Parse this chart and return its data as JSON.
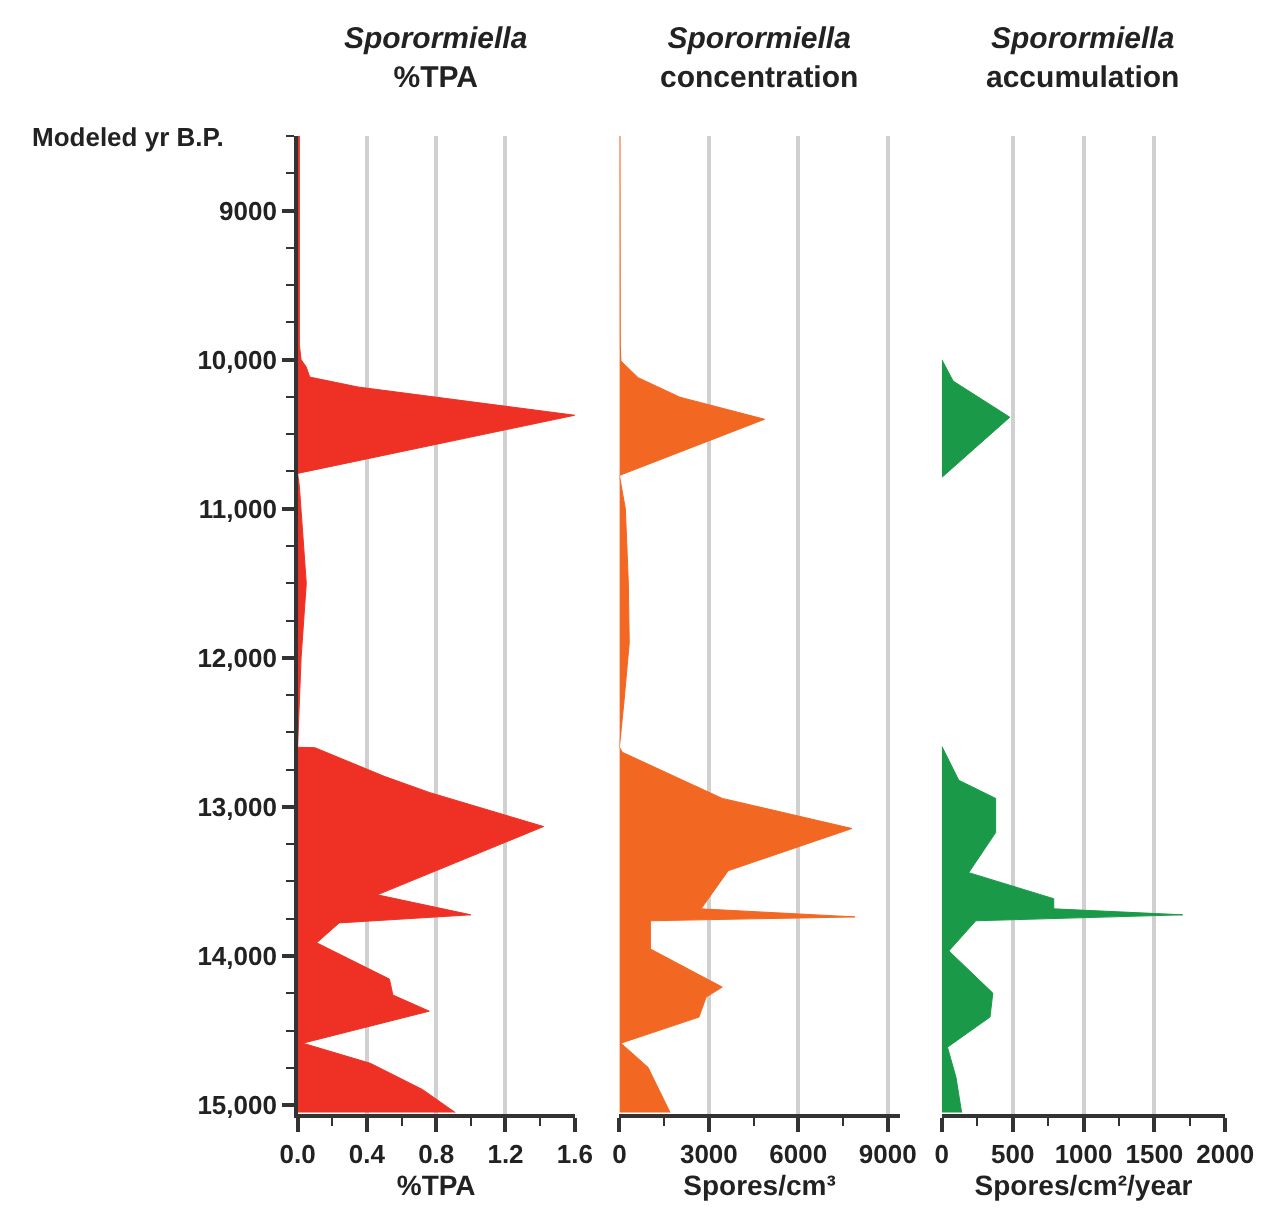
{
  "chart_data": [
    {
      "type": "area",
      "orientation": "horizontal",
      "title": "Sporormiella\n%TPA",
      "xlabel": "%TPA",
      "ylabel": "Modeled yr B.P.",
      "x": [
        8500,
        9000,
        9900,
        10000,
        10050,
        10117,
        10184,
        10373,
        10763,
        10850,
        11500,
        12000,
        12600,
        12603,
        12795,
        12903,
        13132,
        13590,
        13724,
        13778,
        13912,
        14155,
        14262,
        14370,
        14585,
        14720,
        14895,
        15050
      ],
      "series": [
        {
          "color": "#ee3124",
          "values": [
            0.01,
            0.01,
            0.01,
            0.02,
            0.05,
            0.07,
            0.35,
            1.6,
            0,
            0.01,
            0.05,
            0.02,
            0,
            0.1,
            0.5,
            0.76,
            1.42,
            0.46,
            1.0,
            0.24,
            0.11,
            0.53,
            0.55,
            0.76,
            0.03,
            0.42,
            0.72,
            0.91
          ]
        }
      ],
      "xlim": [
        0,
        1.6
      ],
      "xticks": [
        {
          "value": 0,
          "label": "0.0"
        },
        {
          "value": 0.2,
          "label": null
        },
        {
          "value": 0.4,
          "label": "0.4"
        },
        {
          "value": 0.6,
          "label": null
        },
        {
          "value": 0.8,
          "label": "0.8"
        },
        {
          "value": 1.0,
          "label": null
        },
        {
          "value": 1.2,
          "label": "1.2"
        },
        {
          "value": 1.4,
          "label": null
        },
        {
          "value": 1.6,
          "label": "1.6"
        }
      ],
      "ylim": [
        15060,
        8500
      ],
      "yticks": [
        {
          "value": 8500,
          "label": null
        },
        {
          "value": 8750,
          "label": null
        },
        {
          "value": 9000,
          "label": "9000"
        },
        {
          "value": 9250,
          "label": null
        },
        {
          "value": 9500,
          "label": null
        },
        {
          "value": 9750,
          "label": null
        },
        {
          "value": 10000,
          "label": "10,000"
        },
        {
          "value": 10250,
          "label": null
        },
        {
          "value": 10500,
          "label": null
        },
        {
          "value": 10750,
          "label": null
        },
        {
          "value": 11000,
          "label": "11,000"
        },
        {
          "value": 11250,
          "label": null
        },
        {
          "value": 11500,
          "label": null
        },
        {
          "value": 11750,
          "label": null
        },
        {
          "value": 12000,
          "label": "12,000"
        },
        {
          "value": 12250,
          "label": null
        },
        {
          "value": 12500,
          "label": null
        },
        {
          "value": 12750,
          "label": null
        },
        {
          "value": 13000,
          "label": "13,000"
        },
        {
          "value": 13250,
          "label": null
        },
        {
          "value": 13500,
          "label": null
        },
        {
          "value": 13750,
          "label": null
        },
        {
          "value": 14000,
          "label": "14,000"
        },
        {
          "value": 14250,
          "label": null
        },
        {
          "value": 14500,
          "label": null
        },
        {
          "value": 14750,
          "label": null
        },
        {
          "value": 15000,
          "label": "15,000"
        }
      ],
      "grid": "x"
    },
    {
      "type": "area",
      "orientation": "horizontal",
      "title": "Sporormiella\nconcentration",
      "xlabel": "Spores/cm³",
      "x": [
        8500,
        9900,
        10009,
        10121,
        10252,
        10400,
        10777,
        11000,
        11500,
        11900,
        12300,
        12600,
        12634,
        12943,
        13145,
        13428,
        13684,
        13738,
        13764,
        13953,
        14209,
        14276,
        14410,
        14585,
        14747,
        15050
      ],
      "series": [
        {
          "color": "#f26722",
          "values": [
            20,
            30,
            50,
            630,
            2030,
            4870,
            0,
            200,
            300,
            330,
            150,
            0,
            100,
            3450,
            7800,
            3650,
            2740,
            7900,
            1040,
            1040,
            3450,
            2910,
            2670,
            50,
            960,
            1700
          ]
        }
      ],
      "xlim": [
        0,
        9400
      ],
      "xticks": [
        0,
        {
          "value": 1500,
          "label": null
        },
        3000,
        {
          "value": 4500,
          "label": null
        },
        6000,
        {
          "value": 7500,
          "label": null
        },
        9000
      ],
      "ylim": [
        15060,
        8500
      ],
      "tick_labels": "x",
      "grid": "x"
    },
    {
      "type": "area",
      "orientation": "horizontal",
      "title": "Sporormiella\naccumulation",
      "xlabel": "Spores/cm²/year",
      "x": [
        10000,
        10144,
        10386,
        10790,
        11700,
        12593,
        12822,
        12943,
        13172,
        13441,
        13616,
        13684,
        13724,
        13764,
        13966,
        14249,
        14410,
        14612,
        14814,
        15050
      ],
      "series": [
        {
          "color": "#1a9a48",
          "values": [
            0,
            80,
            480,
            0,
            null,
            0,
            120,
            380,
            380,
            190,
            790,
            790,
            1700,
            240,
            50,
            360,
            340,
            40,
            100,
            140
          ]
        }
      ],
      "xlim": [
        0,
        2000
      ],
      "xticks": [
        0,
        {
          "value": 250,
          "label": null
        },
        500,
        {
          "value": 750,
          "label": null
        },
        1000,
        {
          "value": 1250,
          "label": null
        },
        1500,
        {
          "value": 1750,
          "label": null
        },
        2000
      ],
      "ylim": [
        15060,
        8500
      ],
      "tick_labels": "x",
      "grid": "x"
    }
  ]
}
